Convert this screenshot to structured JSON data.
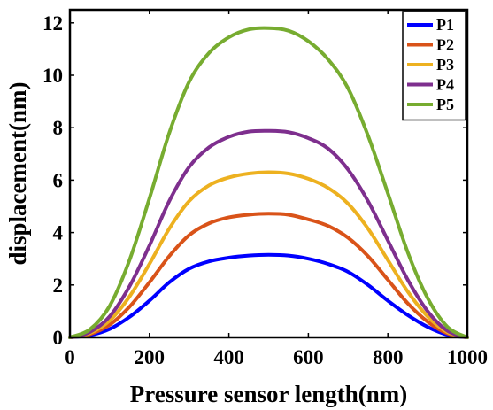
{
  "chart_data": {
    "type": "line",
    "title": "",
    "xlabel": "Pressure sensor length(nm)",
    "ylabel": "displacement(nm)",
    "xlim": [
      0,
      1000
    ],
    "ylim": [
      0,
      12.5
    ],
    "xticks": [
      0,
      200,
      400,
      600,
      800,
      1000
    ],
    "yticks": [
      0,
      2,
      4,
      6,
      8,
      10,
      12
    ],
    "grid": false,
    "legend_position": "top-right",
    "x": [
      0,
      50,
      100,
      150,
      200,
      250,
      300,
      350,
      400,
      450,
      500,
      550,
      600,
      650,
      700,
      750,
      800,
      850,
      900,
      950,
      1000
    ],
    "series": [
      {
        "name": "P1",
        "color": "#0000ff",
        "values": [
          0,
          0.08,
          0.32,
          0.78,
          1.4,
          2.1,
          2.62,
          2.9,
          3.04,
          3.12,
          3.15,
          3.12,
          3.0,
          2.8,
          2.5,
          2.0,
          1.4,
          0.85,
          0.4,
          0.1,
          0
        ]
      },
      {
        "name": "P2",
        "color": "#d95319",
        "values": [
          0,
          0.12,
          0.48,
          1.17,
          2.1,
          3.1,
          3.9,
          4.35,
          4.58,
          4.68,
          4.72,
          4.68,
          4.5,
          4.25,
          3.8,
          3.1,
          2.2,
          1.3,
          0.6,
          0.15,
          0
        ]
      },
      {
        "name": "P3",
        "color": "#edb120",
        "values": [
          0,
          0.16,
          0.64,
          1.56,
          2.8,
          4.15,
          5.2,
          5.8,
          6.1,
          6.25,
          6.3,
          6.25,
          6.05,
          5.7,
          5.1,
          4.15,
          2.95,
          1.75,
          0.8,
          0.2,
          0
        ]
      },
      {
        "name": "P4",
        "color": "#7e2f8e",
        "values": [
          0,
          0.2,
          0.8,
          1.95,
          3.5,
          5.2,
          6.5,
          7.25,
          7.65,
          7.85,
          7.88,
          7.83,
          7.6,
          7.2,
          6.4,
          5.2,
          3.7,
          2.2,
          1.0,
          0.25,
          0
        ]
      },
      {
        "name": "P5",
        "color": "#77ac30",
        "values": [
          0,
          0.3,
          1.2,
          2.95,
          5.3,
          7.8,
          9.75,
          10.85,
          11.45,
          11.75,
          11.8,
          11.7,
          11.3,
          10.6,
          9.5,
          7.7,
          5.5,
          3.25,
          1.5,
          0.4,
          0
        ]
      }
    ]
  }
}
